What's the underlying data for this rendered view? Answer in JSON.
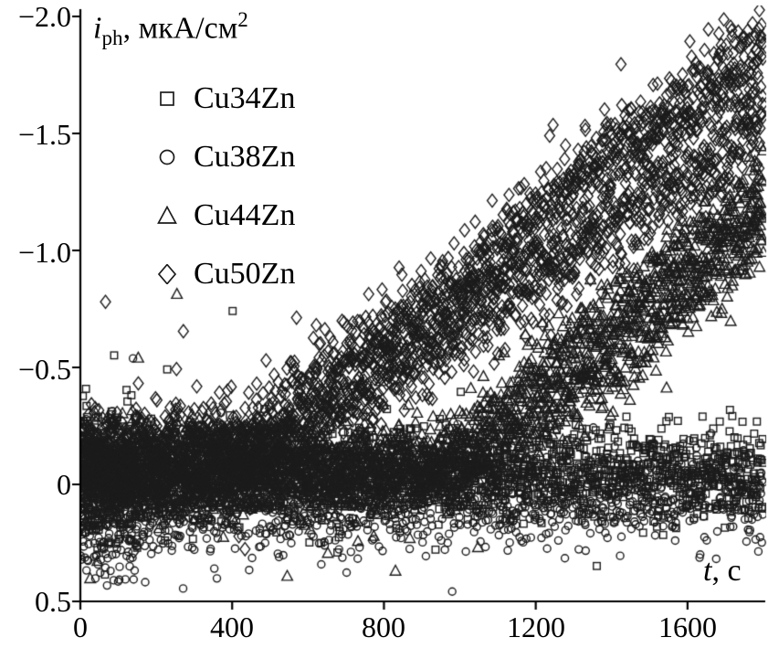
{
  "figure": {
    "background": "#ffffff",
    "marker_color": "#1c1c1c",
    "axis_color": "#000000"
  },
  "chart_data": {
    "type": "scatter",
    "title": "",
    "ylabel": "iph, мкА/см²",
    "ylabel_parts": {
      "symbol": "i",
      "subscript": "ph",
      "unit": ", мкА/см",
      "superscript": "2"
    },
    "xlabel": "t, с",
    "xlabel_parts": {
      "symbol": "t",
      "rest": ", с"
    },
    "xlim": [
      0,
      1800
    ],
    "ylim": [
      -2.0,
      0.5
    ],
    "y_axis_inverted": true,
    "grid": false,
    "legend_position": "upper-left-inside",
    "x_ticks": [
      0,
      400,
      800,
      1200,
      1600
    ],
    "x_tick_labels": [
      "0",
      "400",
      "800",
      "1200",
      "1600"
    ],
    "y_ticks": [
      -2.0,
      -1.5,
      -1.0,
      -0.5,
      0,
      0.5
    ],
    "y_tick_labels": [
      "−2.0",
      "−1.5",
      "−1.0",
      "−0.5",
      "0",
      "0.5"
    ],
    "series": [
      {
        "name": "Cu34Zn",
        "marker": "square",
        "size": 7.5,
        "branches": [
          {
            "trend": [
              [
                0,
                -0.05
              ],
              [
                1800,
                -0.06
              ]
            ],
            "noise": 0.1,
            "n": 1500
          },
          {
            "trend": [
              [
                0,
                -0.05
              ],
              [
                150,
                -0.05
              ]
            ],
            "noise": 0.18,
            "n": 150
          }
        ]
      },
      {
        "name": "Cu38Zn",
        "marker": "circle",
        "size": 8,
        "branches": [
          {
            "trend": [
              [
                0,
                0.12
              ],
              [
                600,
                0.07
              ],
              [
                1800,
                0.02
              ]
            ],
            "noise": 0.1,
            "n": 1500
          },
          {
            "trend": [
              [
                0,
                0.1
              ],
              [
                150,
                0.1
              ]
            ],
            "noise": 0.18,
            "n": 150
          }
        ]
      },
      {
        "name": "Cu44Zn",
        "marker": "triangle",
        "size": 10,
        "branches": [
          {
            "trend": [
              [
                0,
                -0.05
              ],
              [
                950,
                -0.08
              ],
              [
                1200,
                -0.45
              ],
              [
                1500,
                -0.85
              ],
              [
                1800,
                -1.25
              ]
            ],
            "noise": 0.09,
            "n": 1500
          },
          {
            "trend": [
              [
                0,
                -0.05
              ],
              [
                1050,
                -0.07
              ],
              [
                1400,
                -0.5
              ],
              [
                1800,
                -1.08
              ]
            ],
            "noise": 0.09,
            "n": 1200
          }
        ]
      },
      {
        "name": "Cu50Zn",
        "marker": "diamond",
        "size": 10.5,
        "branches": [
          {
            "trend": [
              [
                0,
                -0.1
              ],
              [
                420,
                -0.15
              ],
              [
                700,
                -0.5
              ],
              [
                1000,
                -0.85
              ],
              [
                1400,
                -1.4
              ],
              [
                1800,
                -1.85
              ]
            ],
            "noise": 0.1,
            "n": 1500
          },
          {
            "trend": [
              [
                0,
                -0.1
              ],
              [
                500,
                -0.14
              ],
              [
                900,
                -0.55
              ],
              [
                1300,
                -1.0
              ],
              [
                1800,
                -1.55
              ]
            ],
            "noise": 0.1,
            "n": 1300
          }
        ]
      }
    ]
  }
}
